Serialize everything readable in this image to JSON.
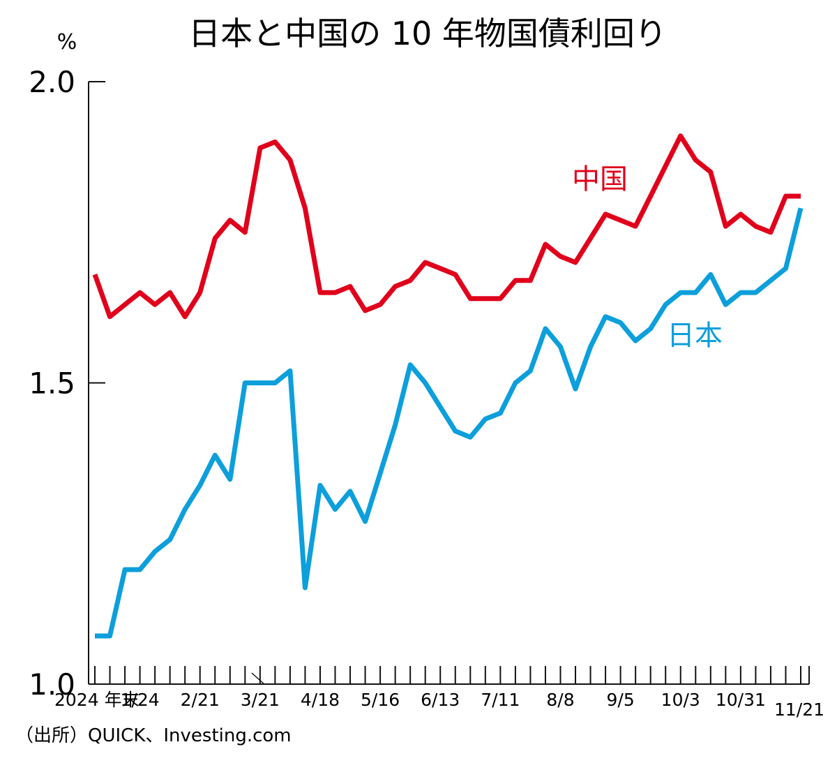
{
  "chart_data": {
    "type": "line",
    "title": "日本と中国の 10 年物国債利回り",
    "ylabel": "%",
    "ylim": [
      1.0,
      2.0
    ],
    "yticks": [
      "2.0",
      "1.5",
      "1.0"
    ],
    "x_ticks": [
      "2024 年末",
      "1/24",
      "2/21",
      "3/21",
      "4/18",
      "5/16",
      "6/13",
      "7/11",
      "8/8",
      "9/5",
      "10/3",
      "10/31",
      "11/21"
    ],
    "x_tick_positions": [
      0,
      3,
      7,
      11,
      15,
      19,
      23,
      27,
      31,
      35,
      39,
      43,
      47
    ],
    "grid": false,
    "legend": "inline labels",
    "source": "（出所）QUICK、Investing.com",
    "series": [
      {
        "name": "中国",
        "color": "#e0001b",
        "values": [
          1.68,
          1.61,
          1.63,
          1.65,
          1.63,
          1.65,
          1.61,
          1.65,
          1.74,
          1.77,
          1.75,
          1.89,
          1.9,
          1.87,
          1.79,
          1.65,
          1.65,
          1.66,
          1.62,
          1.63,
          1.66,
          1.67,
          1.7,
          1.69,
          1.68,
          1.64,
          1.64,
          1.64,
          1.67,
          1.67,
          1.73,
          1.71,
          1.7,
          1.74,
          1.78,
          1.77,
          1.76,
          1.81,
          1.86,
          1.91,
          1.87,
          1.85,
          1.76,
          1.78,
          1.76,
          1.75,
          1.81,
          1.81
        ]
      },
      {
        "name": "日本",
        "color": "#0c9fdb",
        "values": [
          1.08,
          1.08,
          1.19,
          1.19,
          1.22,
          1.24,
          1.29,
          1.33,
          1.38,
          1.34,
          1.5,
          1.5,
          1.5,
          1.52,
          1.16,
          1.33,
          1.29,
          1.32,
          1.27,
          1.35,
          1.43,
          1.53,
          1.5,
          1.46,
          1.42,
          1.41,
          1.44,
          1.45,
          1.5,
          1.52,
          1.59,
          1.56,
          1.49,
          1.56,
          1.61,
          1.6,
          1.57,
          1.59,
          1.63,
          1.65,
          1.65,
          1.68,
          1.63,
          1.65,
          1.65,
          1.67,
          1.69,
          1.79
        ]
      }
    ]
  }
}
